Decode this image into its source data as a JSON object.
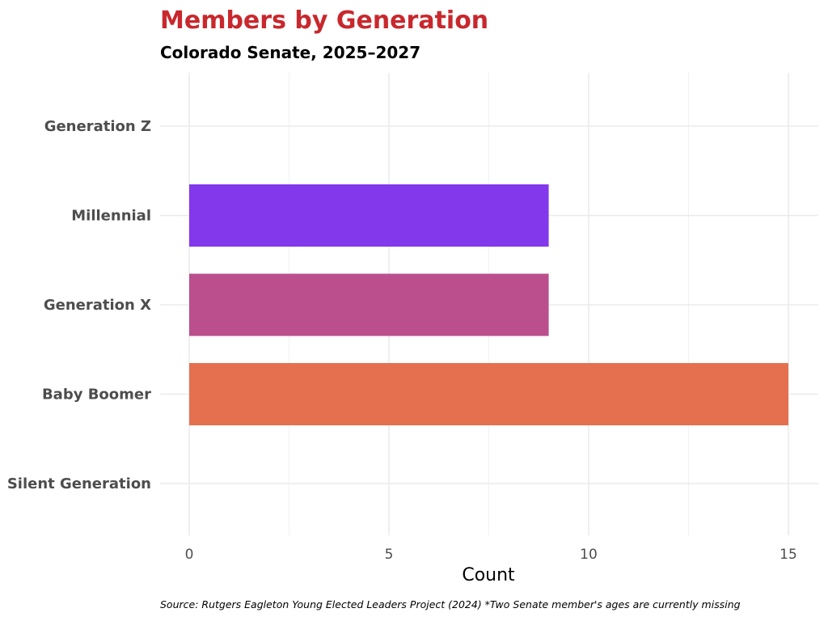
{
  "chart_data": {
    "type": "bar",
    "orientation": "horizontal",
    "title": "Members by Generation",
    "subtitle": "Colorado Senate, 2025–2027",
    "categories": [
      "Silent Generation",
      "Baby Boomer",
      "Generation X",
      "Millennial",
      "Generation Z"
    ],
    "values": [
      0,
      15,
      9,
      9,
      0
    ],
    "colors": [
      "#5b2a86",
      "#e57050",
      "#bb4f8e",
      "#8338ec",
      "#3a86ff"
    ],
    "xlabel": "Count",
    "ylabel": "",
    "xlim": [
      0,
      15.8
    ],
    "x_ticks": [
      0,
      5,
      10,
      15
    ],
    "grid": true,
    "legend": "none",
    "caption": "Source: Rutgers Eagleton Young Elected Leaders Project (2024) *Two Senate member's ages are currently missing"
  }
}
